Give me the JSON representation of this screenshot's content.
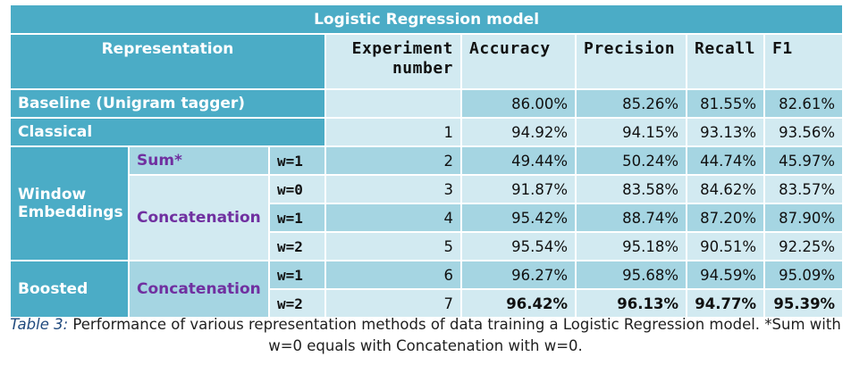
{
  "table": {
    "title": "Logistic Regression model",
    "header": {
      "representation": "Representation",
      "experiment_number": "Experiment number",
      "accuracy": "Accuracy",
      "precision": "Precision",
      "recall": "Recall",
      "f1": "F1"
    },
    "groups": {
      "baseline": "Baseline (Unigram tagger)",
      "classical": "Classical",
      "window_embeddings": "Window Embeddings",
      "boosted": "Boosted",
      "sum": "Sum*",
      "concatenation": "Concatenation"
    },
    "rows": [
      {
        "window": "",
        "exp": "",
        "accuracy": "86.00%",
        "precision": "85.26%",
        "recall": "81.55%",
        "f1": "82.61%"
      },
      {
        "window": "",
        "exp": "1",
        "accuracy": "94.92%",
        "precision": "94.15%",
        "recall": "93.13%",
        "f1": "93.56%"
      },
      {
        "window": "w=1",
        "exp": "2",
        "accuracy": "49.44%",
        "precision": "50.24%",
        "recall": "44.74%",
        "f1": "45.97%"
      },
      {
        "window": "w=0",
        "exp": "3",
        "accuracy": "91.87%",
        "precision": "83.58%",
        "recall": "84.62%",
        "f1": "83.57%"
      },
      {
        "window": "w=1",
        "exp": "4",
        "accuracy": "95.42%",
        "precision": "88.74%",
        "recall": "87.20%",
        "f1": "87.90%"
      },
      {
        "window": "w=2",
        "exp": "5",
        "accuracy": "95.54%",
        "precision": "95.18%",
        "recall": "90.51%",
        "f1": "92.25%"
      },
      {
        "window": "w=1",
        "exp": "6",
        "accuracy": "96.27%",
        "precision": "95.68%",
        "recall": "94.59%",
        "f1": "95.09%"
      },
      {
        "window": "w=2",
        "exp": "7",
        "accuracy": "96.42%",
        "precision": "96.13%",
        "recall": "94.77%",
        "f1": "95.39%"
      }
    ]
  },
  "caption": {
    "label": "Table 3:",
    "text": " Performance of various representation methods of data training a Logistic Regression model. *Sum with w=0 equals with Concatenation with w=0."
  },
  "colors": {
    "header": "#4bacc6",
    "light_row": "#d2eaf1",
    "dark_row": "#a5d5e2",
    "subgroup_text": "#7030a0",
    "caption_label": "#1f497d"
  }
}
